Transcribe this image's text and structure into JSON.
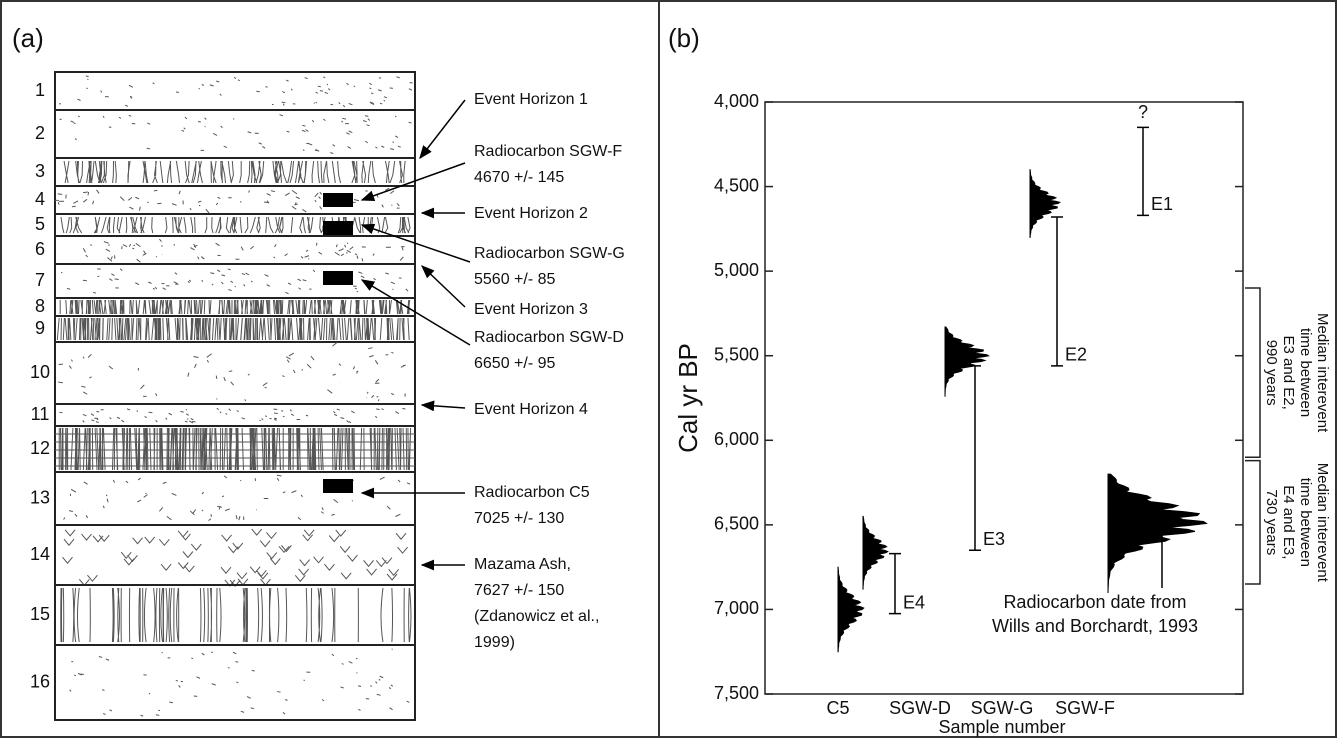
{
  "panel_a": {
    "label": "(a)",
    "layers": [
      "1",
      "2",
      "3",
      "4",
      "5",
      "6",
      "7",
      "8",
      "9",
      "10",
      "11",
      "12",
      "13",
      "14",
      "15",
      "16"
    ],
    "annotations": [
      [
        "Event Horizon 1"
      ],
      [
        "Radiocarbon SGW-F",
        "4670 +/- 145"
      ],
      [
        "Event Horizon 2"
      ],
      [
        "Radiocarbon SGW-G",
        "5560 +/- 85"
      ],
      [
        "Event Horizon 3"
      ],
      [
        "Radiocarbon SGW-D",
        "6650 +/- 95"
      ],
      [
        "Event Horizon 4"
      ],
      [
        "Radiocarbon C5",
        "7025 +/- 130"
      ],
      [
        "Mazama Ash,",
        "7627 +/- 150",
        "(Zdanowicz et al.,",
        "1999)"
      ]
    ]
  },
  "panel_b": {
    "label": "(b)",
    "ylabel": "Cal yr BP",
    "xlabel": "Sample number",
    "categories": [
      "C5",
      "SGW-D",
      "SGW-G",
      "SGW-F"
    ],
    "ylim": [
      4000,
      7500
    ],
    "yticks": [
      {
        "value": 4000,
        "label": "4,000"
      },
      {
        "value": 4500,
        "label": "4,500"
      },
      {
        "value": 5000,
        "label": "5,000"
      },
      {
        "value": 5500,
        "label": "5,500"
      },
      {
        "value": 6000,
        "label": "6,000"
      },
      {
        "value": 6500,
        "label": "6,500"
      },
      {
        "value": 7000,
        "label": "7,000"
      },
      {
        "value": 7500,
        "label": "7,500"
      }
    ],
    "distributions": [
      {
        "from": 6750,
        "peak": 7000,
        "to": 7250
      },
      {
        "from": 6450,
        "peak": 6650,
        "to": 6880
      },
      {
        "from": 5330,
        "peak": 5500,
        "to": 5740
      },
      {
        "from": 4400,
        "peak": 4600,
        "to": 4800
      },
      {
        "from": 6200,
        "peak": 6480,
        "to": 6900
      }
    ],
    "events": [
      {
        "label": "E1",
        "top": 4150,
        "bottom": 4670
      },
      {
        "label": "E2",
        "top": 4680,
        "bottom": 5560
      },
      {
        "label": "E3",
        "top": 5560,
        "bottom": 6650
      },
      {
        "label": "E4",
        "top": 6670,
        "bottom": 7025
      }
    ],
    "question": "?",
    "brackets": [
      {
        "from": 5100,
        "to": 6100,
        "lines": [
          "Median interevent",
          "time between",
          "E3 and E2,",
          "990 years"
        ]
      },
      {
        "from": 6120,
        "to": 6850,
        "lines": [
          "Median interevent",
          "time between",
          "E4 and E3,",
          "730 years"
        ]
      }
    ],
    "note": [
      "Radiocarbon date from",
      "Wills and Borchardt, 1993"
    ]
  }
}
